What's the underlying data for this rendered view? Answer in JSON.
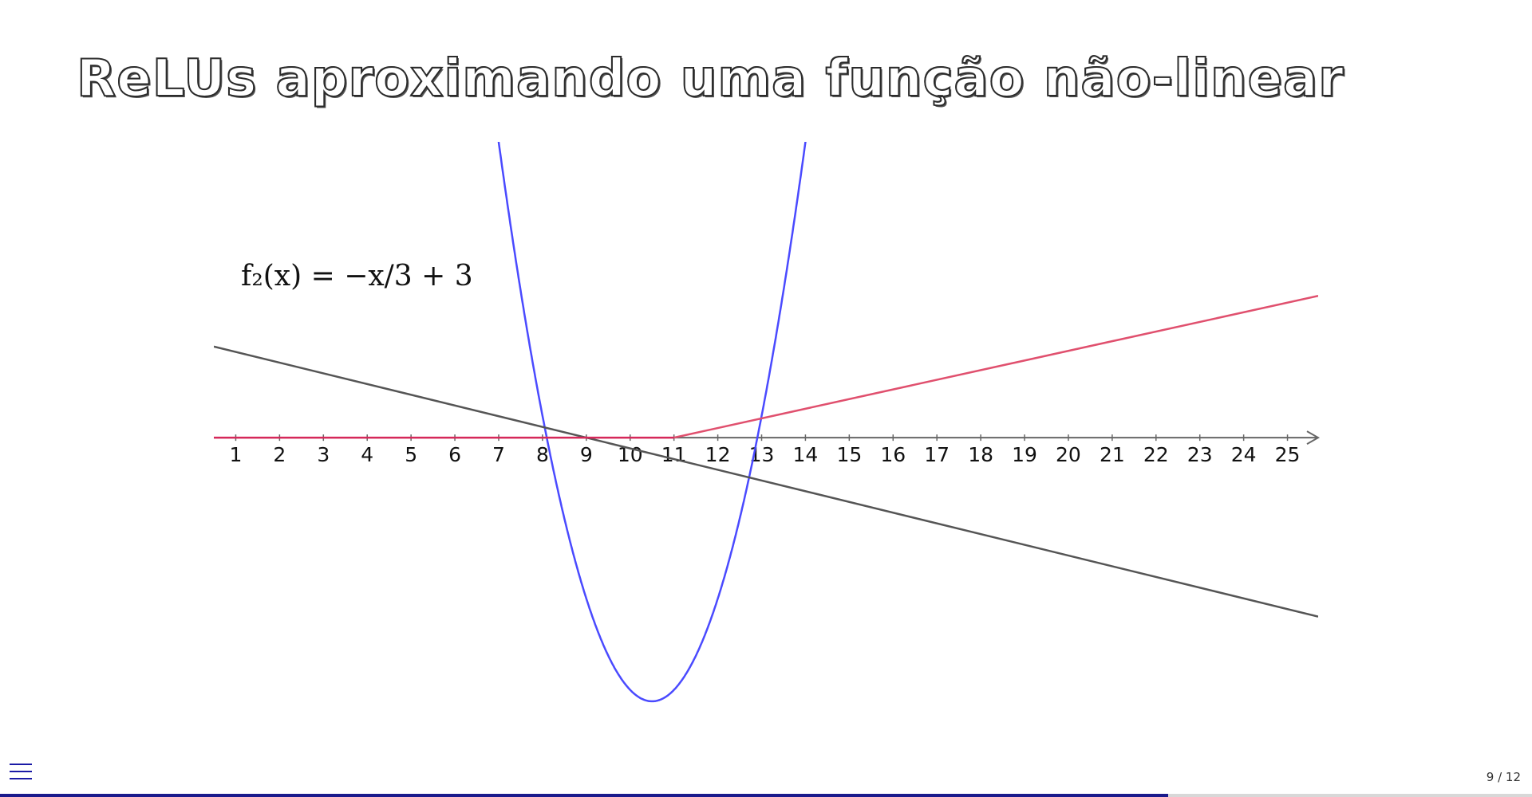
{
  "slide": {
    "title": "ReLUs aproximando uma função não-linear",
    "page": "9 / 12",
    "progress": 0.7625
  },
  "chart_data": {
    "type": "line",
    "xlim": [
      0.5,
      25.7
    ],
    "ylim": [
      -8.4,
      9.2
    ],
    "x_ticks": [
      1,
      2,
      3,
      4,
      5,
      6,
      7,
      8,
      9,
      10,
      11,
      12,
      13,
      14,
      15,
      16,
      17,
      18,
      19,
      20,
      21,
      22,
      23,
      24,
      25
    ],
    "annotation": "f₂(x) = −x/3 + 3",
    "series": [
      {
        "color": "#4a4aff",
        "kind": "parabola",
        "vertex": [
          10.5,
          -8.2
        ],
        "a": 1.42
      },
      {
        "color": "#555555",
        "kind": "line",
        "slope": -0.3333,
        "intercept": 3.0
      },
      {
        "color": "#e0506e",
        "kind": "relu",
        "knee": 11,
        "slope": 0.3
      }
    ],
    "colors": {
      "axis": "#666666",
      "relu_flat": "#d6285a"
    }
  }
}
